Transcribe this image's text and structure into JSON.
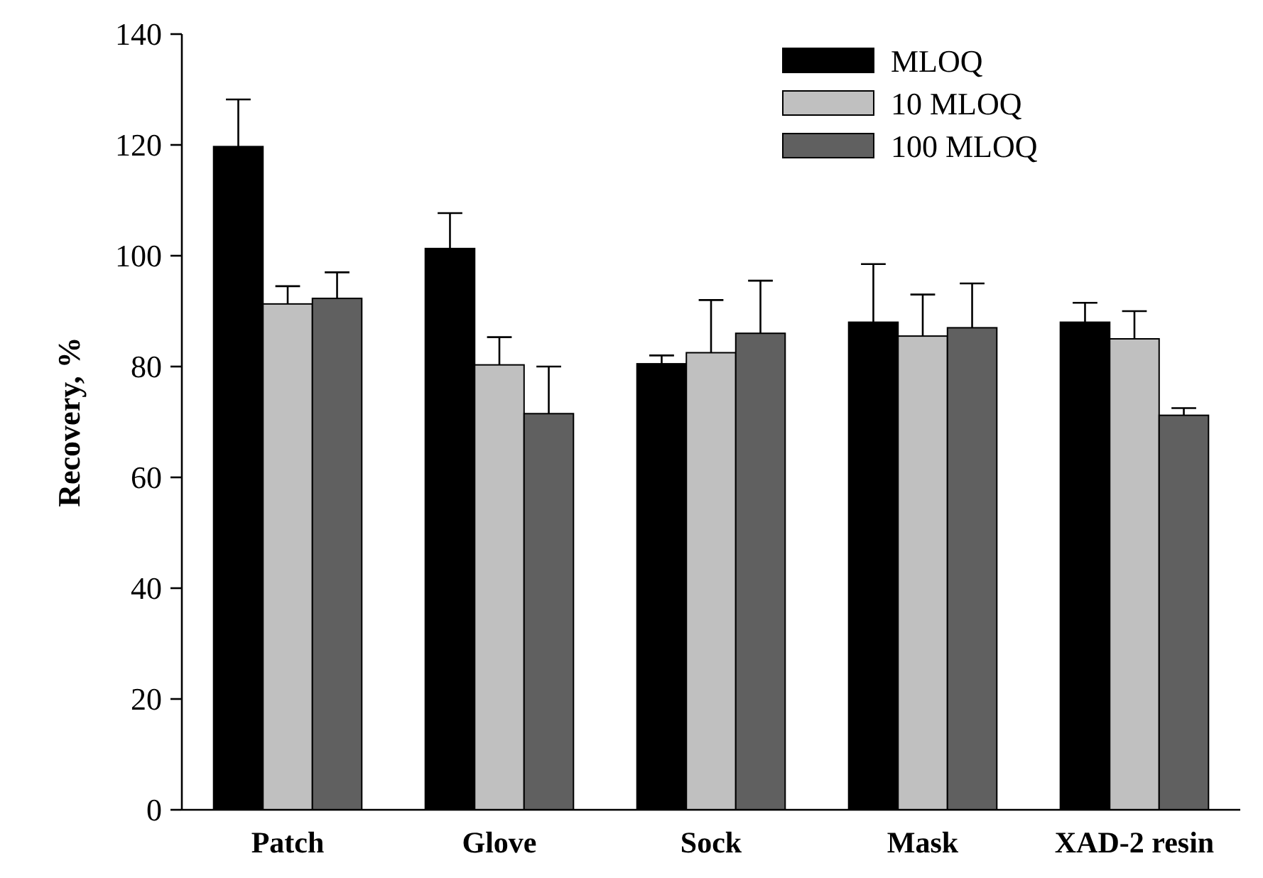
{
  "chart_data": {
    "type": "bar",
    "ylabel": "Recovery, %",
    "categories": [
      "Patch",
      "Glove",
      "Sock",
      "Mask",
      "XAD-2 resin"
    ],
    "series": [
      {
        "name": "MLOQ",
        "color": "#000000",
        "values": [
          119.7,
          101.3,
          80.5,
          88,
          88
        ],
        "errors": [
          [
            119.7,
            128.2
          ],
          [
            101.3,
            107.7
          ],
          [
            80.5,
            82
          ],
          [
            88,
            98.5
          ],
          [
            88,
            91.5
          ]
        ]
      },
      {
        "name": "10 MLOQ",
        "color": "#c0c0c0",
        "values": [
          91.3,
          80.3,
          82.5,
          85.5,
          85
        ],
        "errors": [
          [
            91.3,
            94.5
          ],
          [
            80.3,
            85.3
          ],
          [
            82.5,
            92
          ],
          [
            85.5,
            93
          ],
          [
            85,
            90
          ]
        ]
      },
      {
        "name": "100 MLOQ",
        "color": "#606060",
        "values": [
          92.3,
          71.5,
          86,
          87,
          71.2
        ],
        "errors": [
          [
            92.3,
            97
          ],
          [
            71.5,
            80
          ],
          [
            86,
            95.5
          ],
          [
            87,
            95
          ],
          [
            71.2,
            72.5
          ]
        ]
      }
    ],
    "ylim": [
      0,
      140
    ],
    "yticks": [
      0,
      20,
      40,
      60,
      80,
      100,
      120,
      140
    ],
    "legend": "top right",
    "grid": false
  }
}
